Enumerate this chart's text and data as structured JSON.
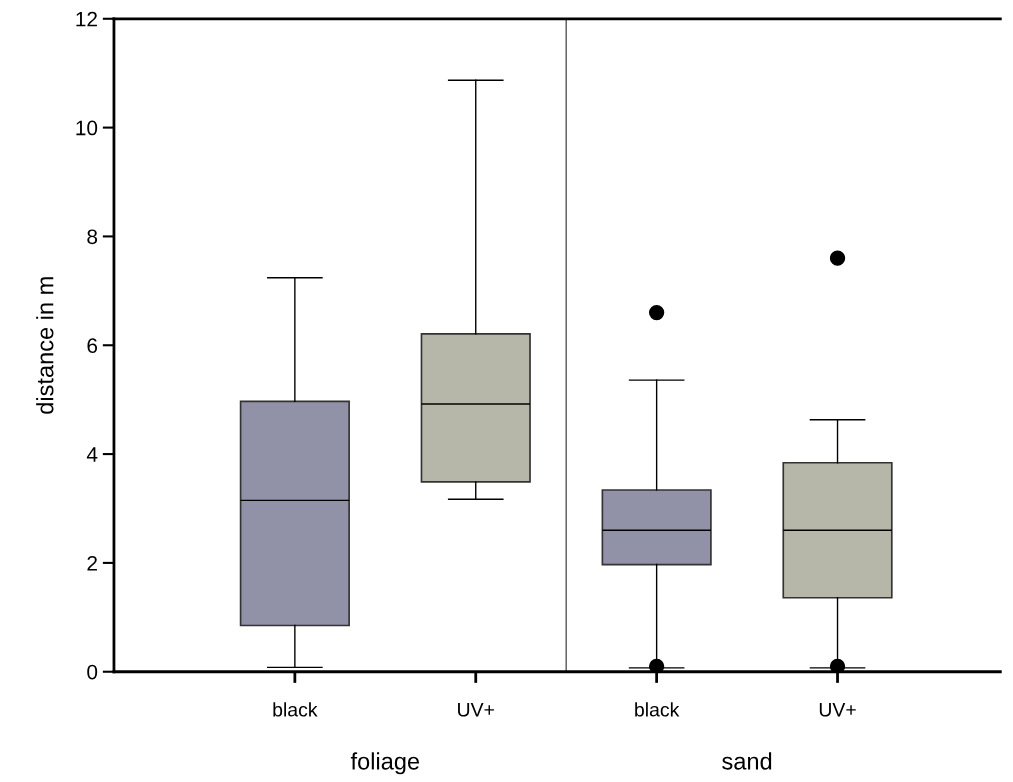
{
  "chart_data": {
    "type": "box",
    "ylabel": "distance in m",
    "categories": [
      "black",
      "UV+",
      "black",
      "UV+"
    ],
    "colors": [
      "#9191a8",
      "#b6b6a9",
      "#9191a8",
      "#b6b6a9"
    ],
    "boxes": [
      {
        "low": 0.08,
        "q1": 0.85,
        "median": 3.15,
        "q3": 4.97,
        "high": 7.24
      },
      {
        "low": 3.17,
        "q1": 3.49,
        "median": 4.92,
        "q3": 6.21,
        "high": 10.87
      },
      {
        "low": 0.07,
        "q1": 1.97,
        "median": 2.6,
        "q3": 3.34,
        "high": 5.36,
        "outliers": [
          6.6,
          0.1
        ]
      },
      {
        "low": 0.07,
        "q1": 1.36,
        "median": 2.6,
        "q3": 3.84,
        "high": 4.63,
        "outliers": [
          7.6,
          0.1
        ]
      }
    ],
    "annotations": [
      "foliage",
      "sand"
    ],
    "ylim": [
      0,
      12
    ],
    "yticks": [
      0,
      2,
      4,
      6,
      8,
      10,
      12
    ],
    "grid": false
  }
}
